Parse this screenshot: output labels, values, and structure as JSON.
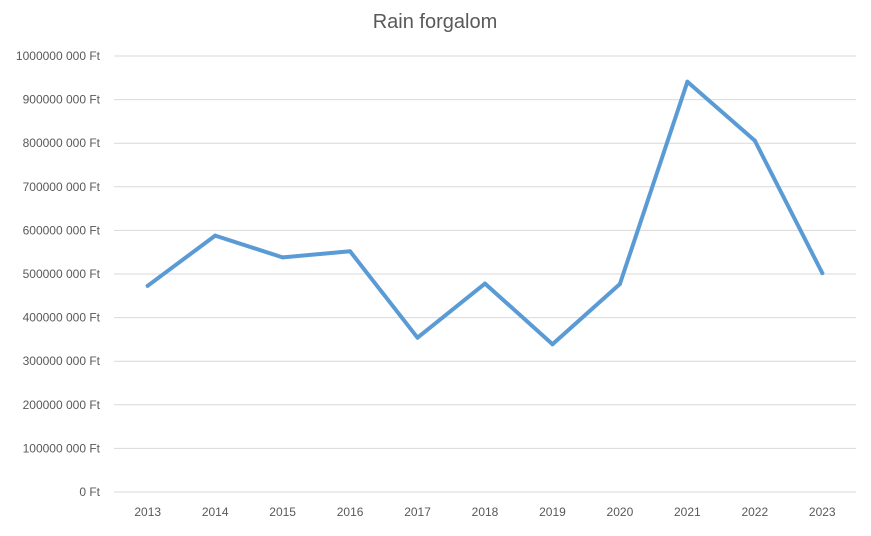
{
  "chart_data": {
    "type": "line",
    "title": "Rain forgalom",
    "xlabel": "",
    "ylabel": "",
    "categories": [
      "2013",
      "2014",
      "2015",
      "2016",
      "2017",
      "2018",
      "2019",
      "2020",
      "2021",
      "2022",
      "2023"
    ],
    "series": [
      {
        "values": [
          473000000,
          588000000,
          538000000,
          552000000,
          354000000,
          478000000,
          339000000,
          477000000,
          941000000,
          806000000,
          502000000
        ],
        "color": "#5b9bd5"
      }
    ],
    "ylim": [
      0,
      1000000000
    ],
    "y_ticks": [
      0,
      100000000,
      200000000,
      300000000,
      400000000,
      500000000,
      600000000,
      700000000,
      800000000,
      900000000,
      1000000000
    ],
    "y_tick_labels": [
      "0 Ft",
      "100000 000 Ft",
      "200000 000 Ft",
      "300000 000 Ft",
      "400000 000 Ft",
      "500000 000 Ft",
      "600000 000 Ft",
      "700000 000 Ft",
      "800000 000 Ft",
      "900000 000 Ft",
      "1000000 000 Ft"
    ],
    "grid": true,
    "legend": "none",
    "gridline_color": "#d9d9d9",
    "text_color": "#595959"
  }
}
